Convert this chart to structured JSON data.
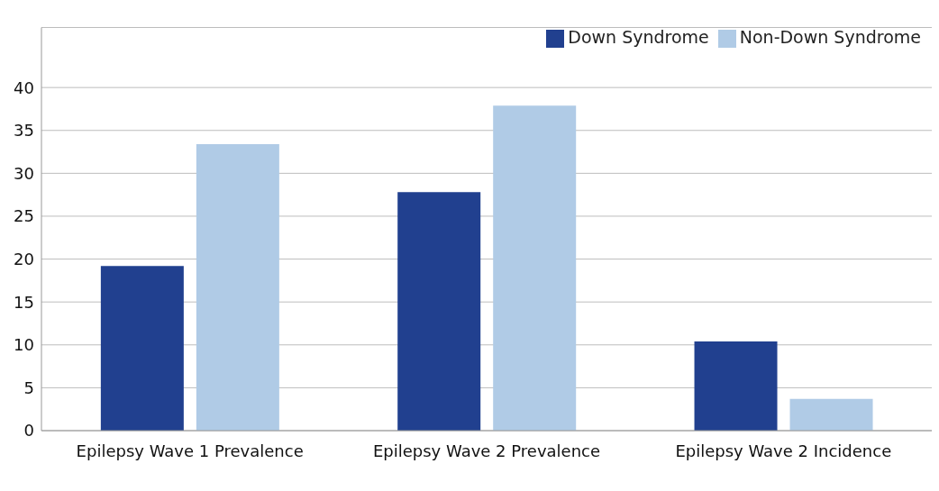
{
  "chart_data": {
    "type": "bar",
    "categories": [
      "Epilepsy Wave 1 Prevalence",
      "Epilepsy Wave 2 Prevalence",
      "Epilepsy Wave 2 Incidence"
    ],
    "series": [
      {
        "name": "Down Syndrome",
        "color": "#21408f",
        "values": [
          19.2,
          27.8,
          10.4
        ]
      },
      {
        "name": "Non-Down Syndrome",
        "color": "#b0cbe6",
        "values": [
          33.4,
          37.9,
          3.7
        ]
      }
    ],
    "ylim": [
      0,
      47
    ],
    "yticks": [
      0,
      5,
      10,
      15,
      20,
      25,
      30,
      35,
      40
    ],
    "grid": "y",
    "legend": "top right"
  }
}
